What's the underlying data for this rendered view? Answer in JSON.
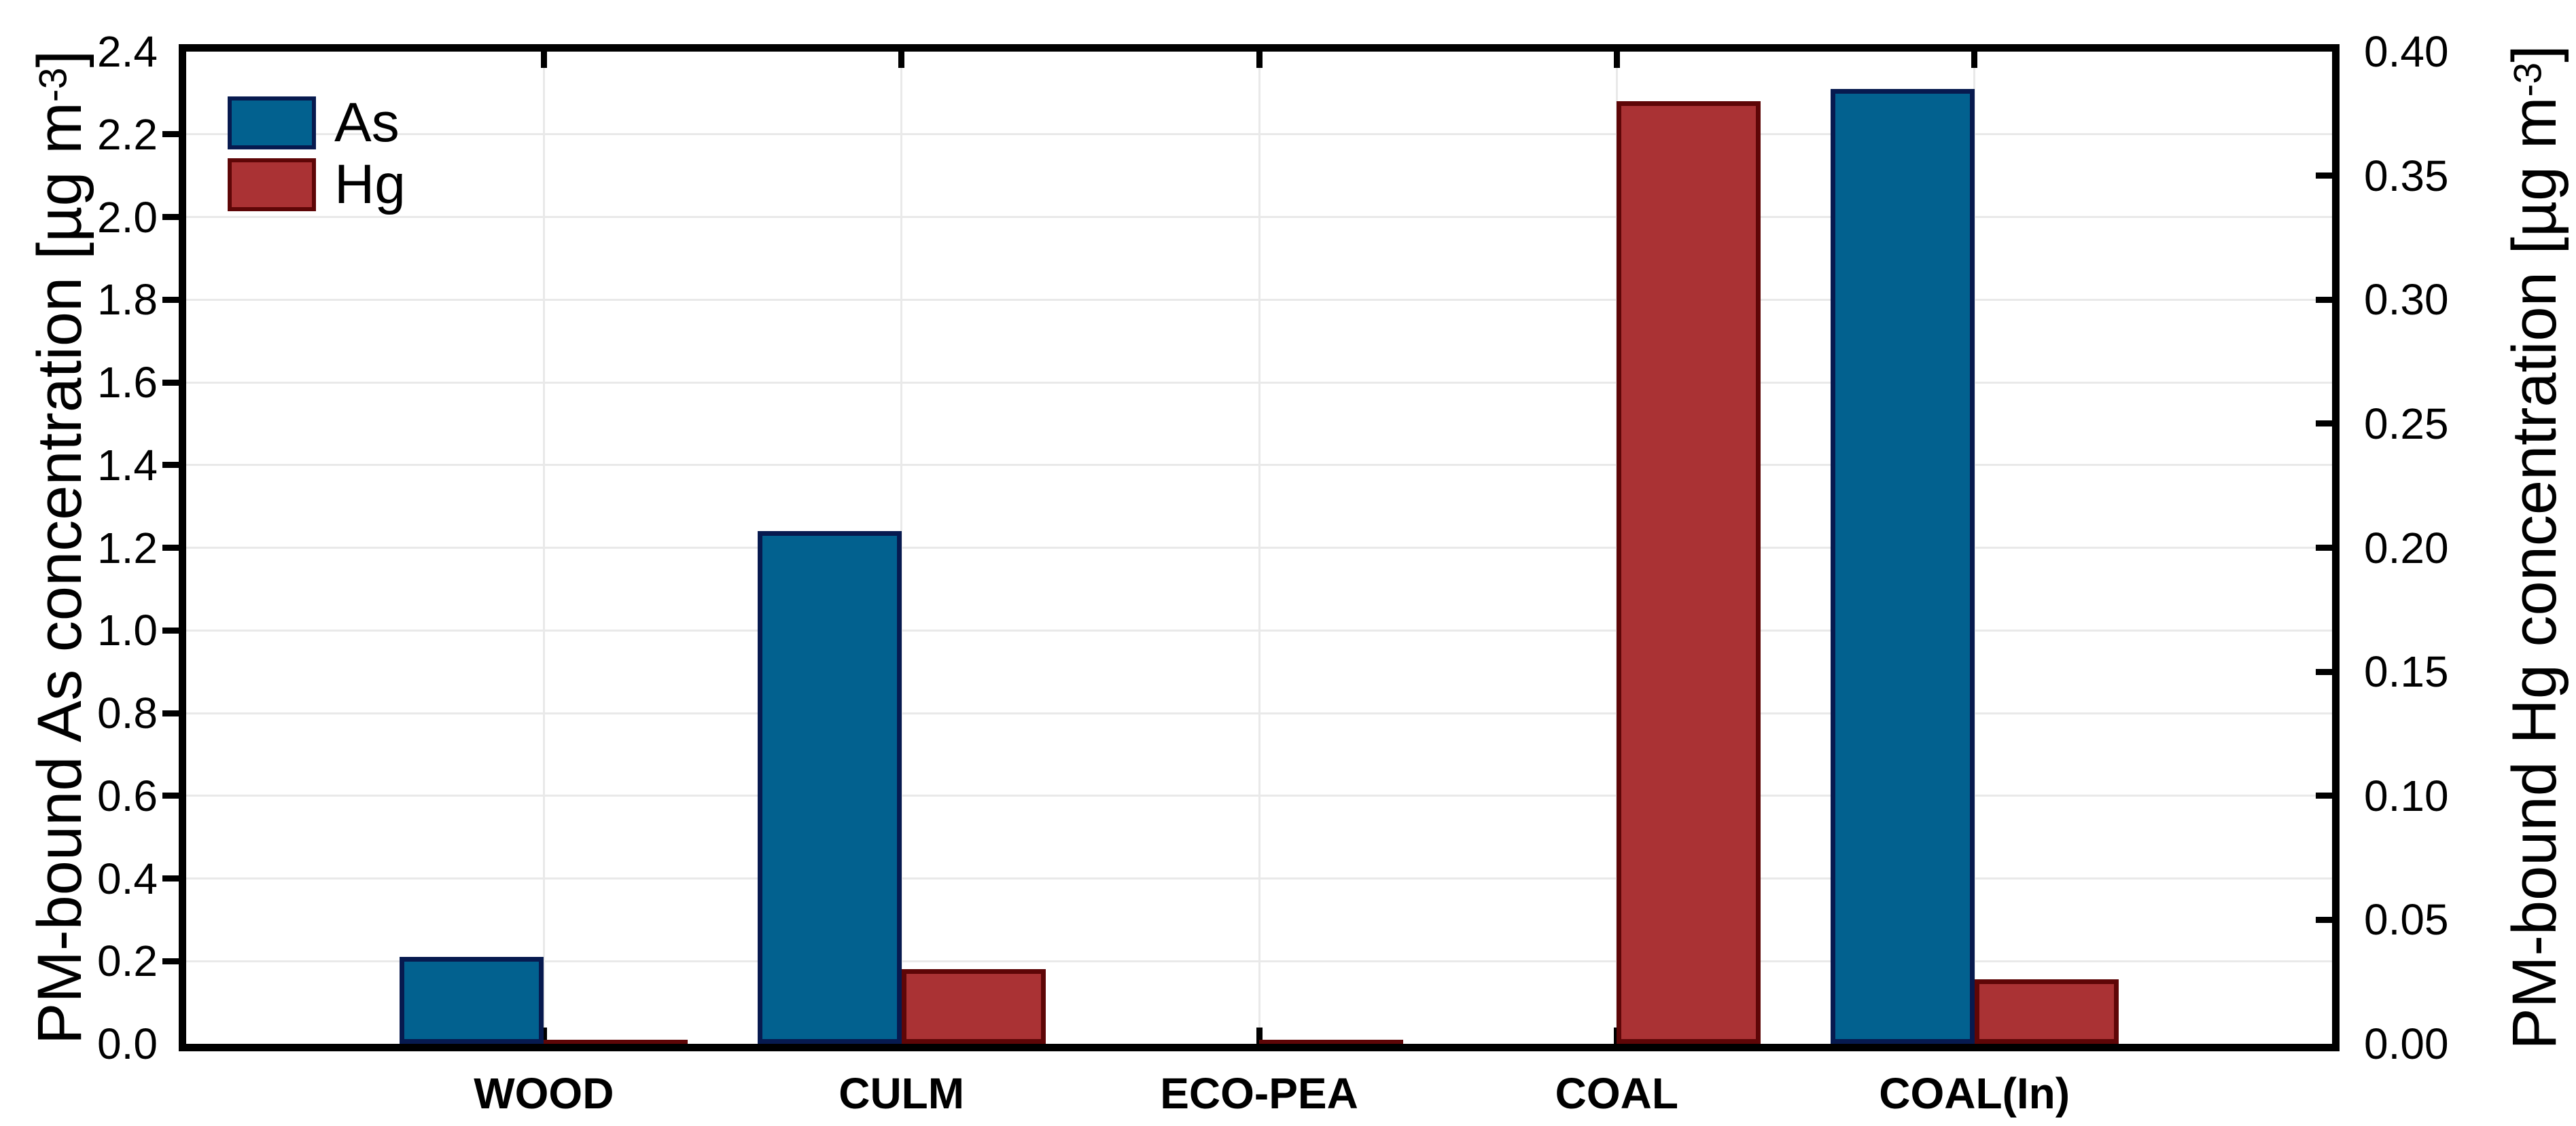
{
  "chart_data": {
    "type": "bar",
    "title": "",
    "categories": [
      "WOOD",
      "CULM",
      "ECO-PEA",
      "COAL",
      "COAL(In)"
    ],
    "series": [
      {
        "name": "As",
        "axis": "left",
        "fill_color": "#02618f",
        "edge_color": "#071a4f",
        "values": [
          0.21,
          1.24,
          0,
          0,
          2.31
        ]
      },
      {
        "name": "Hg",
        "axis": "right",
        "fill_color": "#aa3234",
        "edge_color": "#5e0607",
        "values": [
          0.001,
          0.03,
          0.001,
          0.38,
          0.026
        ]
      }
    ],
    "left_axis": {
      "label": "PM-bound As concentration [µg m",
      "label_sup": "-3",
      "label_end": "]",
      "min": 0,
      "max": 2.4,
      "tick_step": 0.2,
      "tick_labels": [
        "0.0",
        "0.2",
        "0.4",
        "0.6",
        "0.8",
        "1.0",
        "1.2",
        "1.4",
        "1.6",
        "1.8",
        "2.0",
        "2.2",
        "2.4"
      ]
    },
    "right_axis": {
      "label": "PM-bound Hg concentration [µg m",
      "label_sup": "-3",
      "label_end": "]",
      "min": 0,
      "max": 0.4,
      "tick_step": 0.05,
      "tick_labels": [
        "0.00",
        "0.05",
        "0.10",
        "0.15",
        "0.20",
        "0.25",
        "0.30",
        "0.35",
        "0.40"
      ]
    },
    "legend": {
      "position": "top-left",
      "items": [
        {
          "label": "As"
        },
        {
          "label": "Hg"
        }
      ]
    },
    "grid": {
      "horizontal": true,
      "vertical_at_category_centers": true,
      "color": "#e9e9e9"
    },
    "frame_color": "#000000",
    "background_color": "#ffffff"
  }
}
